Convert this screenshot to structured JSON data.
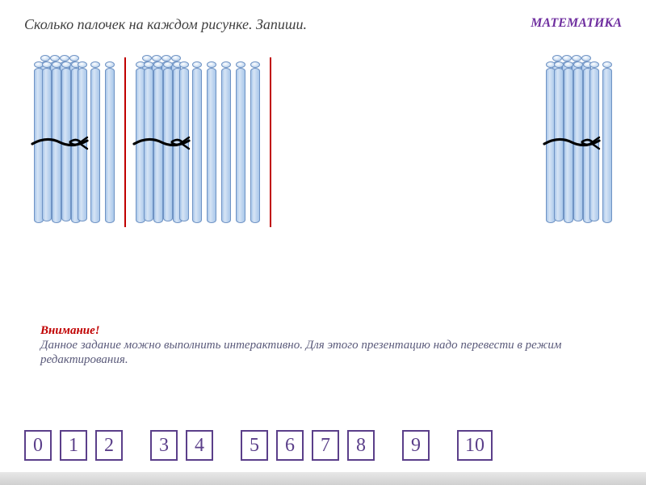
{
  "header": {
    "instruction": "Сколько палочек на каждом рисунке. Запиши.",
    "subject": "МАТЕМАТИКА",
    "instruction_fontsize": 18,
    "subject_fontsize": 16,
    "instruction_color": "#404040",
    "subject_color": "#7030a0"
  },
  "sticks": {
    "stick_color_light": "#d6e4f5",
    "stick_color_mid": "#a9c7ea",
    "stick_border": "#6f93c4",
    "tie_color": "#000000",
    "divider_color": "#c00000",
    "bundle_count": 10,
    "groups": [
      {
        "bundles": 1,
        "singles": 2
      },
      {
        "bundles": 1,
        "singles": 5
      },
      {
        "bundles": 1,
        "singles": 1
      }
    ]
  },
  "note": {
    "attention": "Внимание!",
    "text": "Данное задание можно выполнить интерактивно. Для этого презентацию надо перевести в режим редактирования.",
    "attention_color": "#c00000",
    "text_color": "#5a5a7a",
    "fontsize": 15
  },
  "numbers": {
    "values": [
      "0",
      "1",
      "2",
      "3",
      "4",
      "5",
      "6",
      "7",
      "8",
      "9",
      "10"
    ],
    "gap_after_index": [
      2,
      4,
      8,
      9
    ],
    "border_color": "#5b3f8a",
    "text_color": "#5b3f8a",
    "fontsize": 24
  },
  "background_color": "#ffffff"
}
